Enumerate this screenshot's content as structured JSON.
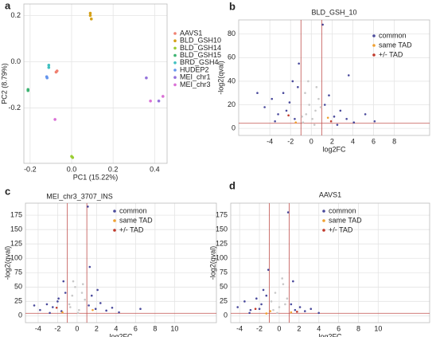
{
  "chart_data": [
    {
      "type": "scatter",
      "panel_label": "a",
      "xlabel": "PC1 (15.22%)",
      "ylabel": "PC2 (8.79%)",
      "legend": "outside right",
      "grid": true,
      "xlim": [
        -0.23,
        0.46
      ],
      "ylim": [
        -0.44,
        0.25
      ],
      "xticks": [
        -0.2,
        {
          "value": 0,
          "label": "0.0"
        },
        0.2,
        0.4
      ],
      "yticks": [
        -0.2,
        {
          "value": 0,
          "label": "0.0"
        },
        0.2
      ],
      "series": [
        {
          "name": "AAVS1",
          "color": "#f08070",
          "x": [
            -0.07,
            -0.075
          ],
          "y": [
            -0.04,
            -0.045
          ]
        },
        {
          "name": "BLD_GSH10",
          "color": "#d4a017",
          "x": [
            0.09,
            0.09,
            0.095
          ],
          "y": [
            0.21,
            0.2,
            0.185
          ]
        },
        {
          "name": "BLD_GSH14",
          "color": "#9acd32",
          "x": [
            0.0,
            0.005
          ],
          "y": [
            -0.41,
            -0.415
          ]
        },
        {
          "name": "BLD_GSH15",
          "color": "#3cb371",
          "x": [
            -0.21,
            -0.21
          ],
          "y": [
            -0.12,
            -0.125
          ]
        },
        {
          "name": "BRD_GSH4",
          "color": "#40c0c0",
          "x": [
            -0.11,
            -0.11
          ],
          "y": [
            -0.015,
            -0.025
          ]
        },
        {
          "name": "HUDEP2",
          "color": "#6495ed",
          "x": [
            -0.12,
            -0.118
          ],
          "y": [
            -0.065,
            -0.07
          ]
        },
        {
          "name": "MEI_chr1",
          "color": "#9370db",
          "x": [
            0.36,
            0.42
          ],
          "y": [
            -0.07,
            -0.17
          ]
        },
        {
          "name": "MEI_chr3",
          "color": "#da70d6",
          "x": [
            -0.08,
            0.38,
            0.44
          ],
          "y": [
            -0.25,
            -0.17,
            -0.15
          ]
        }
      ]
    },
    {
      "type": "scatter",
      "panel_label": "b",
      "title": "BLD_GSH_10",
      "xlabel": "log2FC",
      "ylabel": "-log2(qval)",
      "legend": "upper right",
      "grid": true,
      "xlim": [
        -7,
        11.4
      ],
      "ylim": [
        -6,
        92
      ],
      "xticks": [
        -4,
        -2,
        0,
        2,
        4,
        6,
        8
      ],
      "yticks": [
        0,
        20,
        40,
        60,
        80
      ],
      "vlines": [
        -1,
        1
      ],
      "hlines": [
        4.32
      ],
      "ref_color": "#c0504d",
      "series": [
        {
          "color": "#c8c8c8",
          "x": [
            -0.8,
            -0.5,
            -0.2,
            0.1,
            0.4,
            0.7,
            -0.6,
            0.3,
            0.9,
            -0.9,
            0.5,
            -0.3
          ],
          "y": [
            5,
            12,
            20,
            8,
            15,
            25,
            30,
            3,
            18,
            10,
            35,
            40
          ]
        },
        {
          "name": "common",
          "color": "#4a4a9c",
          "x": [
            -4.5,
            -3.8,
            -3.2,
            -2.7,
            -2.1,
            -1.6,
            -1.3,
            -3.5,
            -2.4,
            -1.8,
            1.3,
            1.7,
            2.2,
            2.8,
            3.4,
            4.1,
            5.2,
            6.1,
            -5.2,
            1.1,
            -1.2,
            2.5,
            3.6
          ],
          "y": [
            18,
            25,
            12,
            30,
            22,
            8,
            35,
            6,
            15,
            40,
            20,
            28,
            10,
            15,
            8,
            5,
            12,
            6,
            30,
            88,
            55,
            3,
            45
          ]
        },
        {
          "name": "same TAD",
          "color": "#f0a030",
          "x": [
            -1.5,
            1.6
          ],
          "y": [
            5,
            9
          ]
        },
        {
          "name": "+/- TAD",
          "color": "#c0392b",
          "x": [
            -2.2,
            1.9
          ],
          "y": [
            11,
            6
          ]
        }
      ]
    },
    {
      "type": "scatter",
      "panel_label": "c",
      "title": "MEI_chr3_3707_INS",
      "xlabel": "log2FC",
      "ylabel": "-log2(qval)",
      "legend": "upper center",
      "grid": true,
      "xlim": [
        -5.3,
        14.3
      ],
      "ylim": [
        -12,
        196
      ],
      "xticks": [
        -4,
        -2,
        0,
        2,
        4,
        6,
        8,
        10
      ],
      "yticks": [
        0,
        25,
        50,
        75,
        100,
        125,
        150,
        175
      ],
      "vlines": [
        -1,
        1
      ],
      "hlines": [
        4.32
      ],
      "ref_color": "#c0504d",
      "series": [
        {
          "color": "#c8c8c8",
          "x": [
            -0.8,
            -0.5,
            -0.2,
            0.2,
            0.5,
            0.8,
            -0.4,
            0.1,
            -0.7,
            0.6
          ],
          "y": [
            20,
            35,
            50,
            10,
            40,
            28,
            60,
            5,
            15,
            55
          ]
        },
        {
          "name": "common",
          "color": "#4a4a9c",
          "x": [
            -3.8,
            -3.1,
            -2.5,
            -2.0,
            -1.6,
            -1.2,
            -2.8,
            -1.9,
            1.2,
            1.5,
            1.9,
            2.4,
            3.0,
            3.6,
            4.3,
            1.3,
            -1.4,
            6.5,
            -4.4,
            1.1,
            2.1
          ],
          "y": [
            10,
            20,
            15,
            25,
            8,
            40,
            5,
            30,
            18,
            35,
            12,
            22,
            9,
            14,
            6,
            85,
            60,
            12,
            18,
            190,
            45
          ]
        },
        {
          "name": "same TAD",
          "color": "#f0a030",
          "x": [
            -1.5,
            1.6
          ],
          "y": [
            6,
            10
          ]
        },
        {
          "name": "+/- TAD",
          "color": "#c0392b",
          "x": [
            -2.1
          ],
          "y": [
            14
          ]
        }
      ]
    },
    {
      "type": "scatter",
      "panel_label": "d",
      "title": "AAVS1",
      "xlabel": "log2FC",
      "ylabel": "-log2(qval)",
      "legend": "upper center",
      "grid": true,
      "xlim": [
        -4.9,
        15.2
      ],
      "ylim": [
        -12,
        196
      ],
      "xticks": [
        -4,
        -2,
        0,
        2,
        4,
        6,
        8,
        10
      ],
      "yticks": [
        0,
        25,
        50,
        75,
        100,
        125,
        150,
        175
      ],
      "vlines": [
        -1,
        1
      ],
      "hlines": [
        4.32
      ],
      "ref_color": "#c0504d",
      "series": [
        {
          "color": "#c8c8c8",
          "x": [
            -0.8,
            -0.4,
            0,
            0.4,
            0.8,
            -0.6,
            0.3,
            0.6,
            -0.2
          ],
          "y": [
            25,
            40,
            15,
            55,
            30,
            10,
            65,
            20,
            5
          ]
        },
        {
          "name": "common",
          "color": "#4a4a9c",
          "x": [
            -4.2,
            -3.5,
            -2.9,
            -2.3,
            -1.8,
            -1.3,
            -3.0,
            -2.0,
            1.2,
            1.6,
            2.1,
            2.6,
            3.2,
            4.0,
            -1.6,
            1.4,
            -1.1,
            0.9
          ],
          "y": [
            15,
            25,
            10,
            30,
            20,
            35,
            5,
            12,
            20,
            10,
            15,
            8,
            12,
            5,
            45,
            60,
            80,
            180
          ]
        },
        {
          "name": "same TAD",
          "color": "#f0a030",
          "x": [
            -1.3,
            -0.9,
            1.2
          ],
          "y": [
            4,
            8,
            6
          ]
        },
        {
          "name": "+/- TAD",
          "color": "#c0392b",
          "x": [
            -2.4,
            1.8
          ],
          "y": [
            12,
            7
          ]
        }
      ]
    }
  ]
}
